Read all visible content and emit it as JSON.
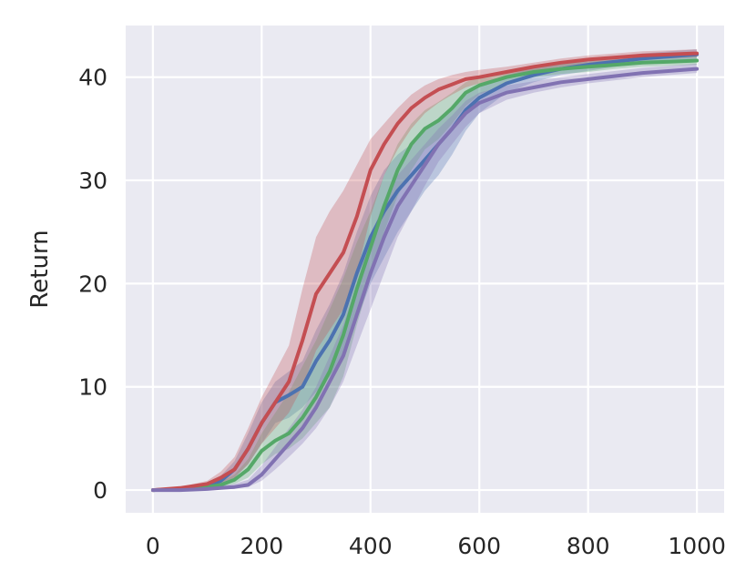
{
  "chart_data": {
    "type": "line",
    "title": "",
    "xlabel": "",
    "ylabel": "Return",
    "xlim": [
      -50,
      1050
    ],
    "ylim": [
      -2.2,
      45
    ],
    "grid": true,
    "background": "#eaeaf2",
    "x_ticks": [
      0,
      200,
      400,
      600,
      800,
      1000
    ],
    "x_tick_labels": [
      "0",
      "200",
      "400",
      "600",
      "800",
      "1000"
    ],
    "y_ticks": [
      0,
      10,
      20,
      30,
      40
    ],
    "y_tick_labels": [
      "0",
      "10",
      "20",
      "30",
      "40"
    ],
    "x": [
      0,
      50,
      100,
      125,
      150,
      175,
      200,
      225,
      250,
      275,
      300,
      325,
      350,
      375,
      400,
      425,
      450,
      475,
      500,
      525,
      550,
      575,
      600,
      650,
      700,
      750,
      800,
      850,
      900,
      950,
      1000
    ],
    "series": [
      {
        "color": "#4c72b0",
        "values": [
          0,
          0.1,
          0.4,
          0.9,
          2.0,
          4.0,
          6.5,
          8.5,
          9.2,
          10.0,
          12.5,
          14.5,
          17.0,
          21.0,
          24.5,
          27.0,
          29.0,
          30.5,
          32.0,
          33.5,
          35.0,
          36.8,
          38.0,
          39.4,
          40.2,
          40.8,
          41.2,
          41.5,
          41.8,
          42.0,
          42.2
        ],
        "lower": [
          0,
          0,
          0.2,
          0.5,
          1.2,
          2.5,
          4.5,
          6.5,
          7.0,
          8.0,
          9.5,
          11.0,
          13.0,
          16.5,
          20.0,
          22.5,
          25.0,
          27.0,
          29.0,
          30.5,
          32.5,
          34.8,
          36.5,
          38.5,
          39.5,
          40.2,
          40.6,
          41.0,
          41.3,
          41.6,
          41.8
        ],
        "upper": [
          0,
          0.2,
          0.7,
          1.4,
          2.8,
          5.5,
          8.5,
          10.5,
          11.5,
          12.5,
          15.5,
          18.0,
          21.0,
          25.0,
          28.5,
          31.0,
          32.5,
          33.5,
          34.8,
          36.0,
          37.2,
          38.5,
          39.3,
          40.2,
          40.9,
          41.3,
          41.7,
          42.0,
          42.3,
          42.5,
          42.7
        ]
      },
      {
        "color": "#55a868",
        "values": [
          0,
          0.1,
          0.3,
          0.5,
          1.0,
          2.0,
          3.8,
          4.8,
          5.5,
          7.0,
          9.0,
          11.5,
          15.0,
          19.5,
          23.5,
          27.5,
          31.0,
          33.5,
          35.0,
          35.8,
          37.0,
          38.5,
          39.2,
          40.0,
          40.5,
          40.8,
          41.0,
          41.2,
          41.4,
          41.5,
          41.6
        ],
        "lower": [
          0,
          0,
          0.1,
          0.3,
          0.6,
          1.2,
          2.5,
          3.5,
          4.0,
          5.0,
          6.5,
          8.0,
          11.0,
          16.0,
          20.5,
          25.0,
          28.5,
          31.0,
          33.0,
          34.0,
          35.5,
          37.2,
          38.3,
          39.4,
          40.0,
          40.3,
          40.5,
          40.8,
          41.0,
          41.1,
          41.2
        ],
        "upper": [
          0,
          0.2,
          0.5,
          0.8,
          1.5,
          3.0,
          5.5,
          7.5,
          9.5,
          12.0,
          14.5,
          17.5,
          20.5,
          24.0,
          27.0,
          30.5,
          33.5,
          35.5,
          36.8,
          37.6,
          38.5,
          39.5,
          40.0,
          40.6,
          41.0,
          41.3,
          41.5,
          41.7,
          41.9,
          42.0,
          42.1
        ]
      },
      {
        "color": "#c44e52",
        "values": [
          0,
          0.2,
          0.6,
          1.2,
          2.0,
          4.0,
          6.5,
          8.5,
          10.5,
          14.5,
          19.0,
          21.0,
          23.0,
          26.5,
          31.0,
          33.5,
          35.5,
          37.0,
          38.0,
          38.8,
          39.3,
          39.8,
          40.0,
          40.5,
          41.0,
          41.4,
          41.7,
          41.9,
          42.1,
          42.2,
          42.3
        ],
        "lower": [
          0,
          0.1,
          0.3,
          0.7,
          1.2,
          2.5,
          4.5,
          6.0,
          7.5,
          10.0,
          13.5,
          15.5,
          17.5,
          21.0,
          26.5,
          30.5,
          33.0,
          35.0,
          36.5,
          37.5,
          38.3,
          39.0,
          39.4,
          40.0,
          40.6,
          41.0,
          41.3,
          41.5,
          41.7,
          41.8,
          41.9
        ],
        "upper": [
          0,
          0.3,
          0.9,
          1.8,
          3.2,
          6.0,
          9.0,
          11.5,
          14.0,
          19.5,
          24.5,
          27.0,
          29.0,
          31.5,
          34.0,
          35.5,
          37.0,
          38.3,
          39.2,
          39.8,
          40.2,
          40.5,
          40.7,
          41.0,
          41.4,
          41.8,
          42.1,
          42.3,
          42.5,
          42.6,
          42.7
        ]
      },
      {
        "color": "#8172b2",
        "values": [
          0,
          0,
          0.1,
          0.2,
          0.3,
          0.5,
          1.5,
          3.0,
          4.5,
          6.0,
          8.0,
          10.5,
          13.0,
          17.0,
          21.0,
          24.5,
          27.5,
          29.5,
          31.5,
          33.5,
          35.0,
          36.5,
          37.5,
          38.5,
          39.0,
          39.5,
          39.8,
          40.1,
          40.4,
          40.6,
          40.8
        ],
        "lower": [
          0,
          0,
          0,
          0.1,
          0.2,
          0.3,
          0.9,
          2.0,
          3.2,
          4.5,
          6.0,
          8.0,
          10.5,
          14.0,
          17.5,
          21.0,
          24.5,
          27.0,
          29.5,
          31.8,
          33.5,
          35.2,
          36.5,
          37.8,
          38.5,
          39.0,
          39.4,
          39.7,
          40.0,
          40.2,
          40.4
        ],
        "upper": [
          0,
          0.1,
          0.2,
          0.4,
          0.6,
          1.0,
          2.4,
          4.2,
          6.0,
          7.8,
          10.0,
          13.0,
          16.0,
          20.0,
          24.5,
          28.0,
          30.5,
          32.0,
          33.5,
          35.0,
          36.3,
          37.7,
          38.5,
          39.2,
          39.6,
          40.0,
          40.3,
          40.6,
          40.9,
          41.1,
          41.3
        ]
      }
    ],
    "band_opacity": 0.3
  }
}
